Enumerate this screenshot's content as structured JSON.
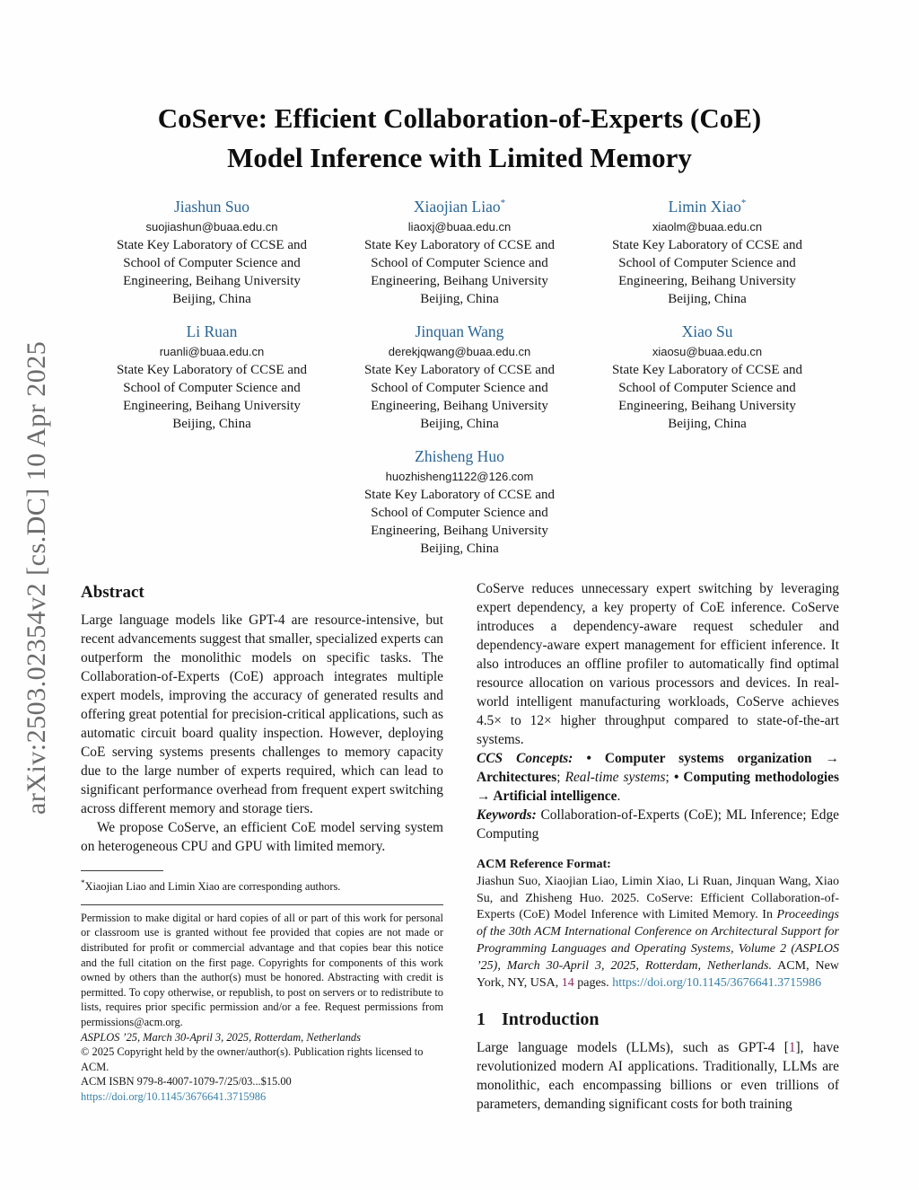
{
  "sidebar": {
    "arxiv_label": "arXiv:2503.02354v2  [cs.DC]  10 Apr 2025"
  },
  "title": {
    "line1": "CoServe: Efficient Collaboration-of-Experts (CoE)",
    "line2": "Model Inference with Limited Memory"
  },
  "authors": [
    {
      "name": "Jiashun Suo",
      "marker": "",
      "email": "suojiashun@buaa.edu.cn",
      "affil1": "State Key Laboratory of CCSE and",
      "affil2": "School of Computer Science and",
      "affil3": "Engineering, Beihang University",
      "affil4": "Beijing, China"
    },
    {
      "name": "Xiaojian Liao",
      "marker": "*",
      "email": "liaoxj@buaa.edu.cn",
      "affil1": "State Key Laboratory of CCSE and",
      "affil2": "School of Computer Science and",
      "affil3": "Engineering, Beihang University",
      "affil4": "Beijing, China"
    },
    {
      "name": "Limin Xiao",
      "marker": "*",
      "email": "xiaolm@buaa.edu.cn",
      "affil1": "State Key Laboratory of CCSE and",
      "affil2": "School of Computer Science and",
      "affil3": "Engineering, Beihang University",
      "affil4": "Beijing, China"
    },
    {
      "name": "Li Ruan",
      "marker": "",
      "email": "ruanli@buaa.edu.cn",
      "affil1": "State Key Laboratory of CCSE and",
      "affil2": "School of Computer Science and",
      "affil3": "Engineering, Beihang University",
      "affil4": "Beijing, China"
    },
    {
      "name": "Jinquan Wang",
      "marker": "",
      "email": "derekjqwang@buaa.edu.cn",
      "affil1": "State Key Laboratory of CCSE and",
      "affil2": "School of Computer Science and",
      "affil3": "Engineering, Beihang University",
      "affil4": "Beijing, China"
    },
    {
      "name": "Xiao Su",
      "marker": "",
      "email": "xiaosu@buaa.edu.cn",
      "affil1": "State Key Laboratory of CCSE and",
      "affil2": "School of Computer Science and",
      "affil3": "Engineering, Beihang University",
      "affil4": "Beijing, China"
    },
    {
      "name": "Zhisheng Huo",
      "marker": "",
      "email": "huozhisheng1122@126.com",
      "affil1": "State Key Laboratory of CCSE and",
      "affil2": "School of Computer Science and",
      "affil3": "Engineering, Beihang University",
      "affil4": "Beijing, China"
    }
  ],
  "abstract": {
    "heading": "Abstract",
    "p1": "Large language models like GPT-4 are resource-intensive, but recent advancements suggest that smaller, specialized experts can outperform the monolithic models on specific tasks. The Collaboration-of-Experts (CoE) approach integrates multiple expert models, improving the accuracy of generated results and offering great potential for precision-critical applications, such as automatic circuit board quality inspection. However, deploying CoE serving systems presents challenges to memory capacity due to the large number of experts required, which can lead to significant performance overhead from frequent expert switching across different memory and storage tiers.",
    "p2": "We propose CoServe, an efficient CoE model serving system on heterogeneous CPU and GPU with limited memory.",
    "p3": "CoServe reduces unnecessary expert switching by leveraging expert dependency, a key property of CoE inference. CoServe introduces a dependency-aware request scheduler and dependency-aware expert management for efficient inference. It also introduces an offline profiler to automatically find optimal resource allocation on various processors and devices. In real-world intelligent manufacturing workloads, CoServe achieves 4.5× to 12× higher throughput compared to state-of-the-art systems."
  },
  "ccs": {
    "label": "CCS Concepts:",
    "seg1": "• Computer systems organization → Architectures",
    "sep1": "; ",
    "seg2": "Real-time systems",
    "sep2": "; ",
    "seg3": "• Computing methodologies → Artificial intelligence",
    "period": "."
  },
  "keywords": {
    "label": "Keywords:",
    "text": "Collaboration-of-Experts (CoE); ML Inference; Edge Computing"
  },
  "acm_reference": {
    "label": "ACM Reference Format:",
    "text1": "Jiashun Suo, Xiaojian Liao, Limin Xiao, Li Ruan, Jinquan Wang, Xiao Su, and Zhisheng Huo. 2025. CoServe: Efficient Collaboration-of-Experts (CoE) Model Inference with Limited Memory. In ",
    "italic": "Proceedings of the 30th ACM International Conference on Architectural Support for Programming Languages and Operating Systems, Volume 2 (ASPLOS ’25), March 30-April 3, 2025, Rotterdam, Netherlands.",
    "text2": " ACM, New York, NY, USA, ",
    "pages": "14",
    "text3": " pages. ",
    "doi": "https://doi.org/10.1145/3676641.3715986"
  },
  "intro": {
    "number": "1",
    "heading": "Introduction",
    "t1": "Large language models (LLMs), such as GPT-4 [",
    "cite1": "1",
    "t2": "], have revolutionized modern AI applications. Traditionally, LLMs are monolithic, each encompassing billions or even trillions of parameters, demanding significant costs for both training"
  },
  "footnotes": {
    "marker": "*",
    "corresponding": "Xiaojian Liao and Limin Xiao are corresponding authors.",
    "permission": "Permission to make digital or hard copies of all or part of this work for personal or classroom use is granted without fee provided that copies are not made or distributed for profit or commercial advantage and that copies bear this notice and the full citation on the first page. Copyrights for components of this work owned by others than the author(s) must be honored. Abstracting with credit is permitted. To copy otherwise, or republish, to post on servers or to redistribute to lists, requires prior specific permission and/or a fee. Request permissions from permissions@acm.org.",
    "venue": "ASPLOS ’25, March 30-April 3, 2025, Rotterdam, Netherlands",
    "copyright": "© 2025 Copyright held by the owner/author(s). Publication rights licensed to ACM.",
    "isbn": "ACM ISBN 979-8-4007-1079-7/25/03...$15.00",
    "doi": "https://doi.org/10.1145/3676641.3715986"
  },
  "colors": {
    "author_name": "#2a6595",
    "link": "#377fa8",
    "citation": "#8b2f62",
    "watermark": "#6b6b6b"
  }
}
